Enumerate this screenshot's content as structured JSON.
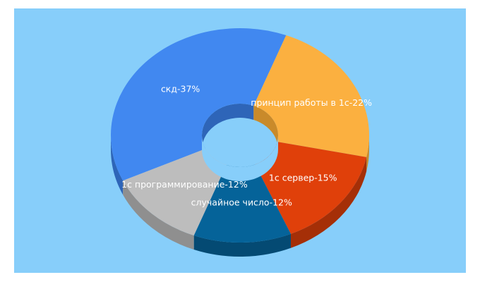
{
  "chart_data": {
    "type": "pie",
    "donut": true,
    "three_d": true,
    "background": "#87cefa",
    "slices": [
      {
        "label": "скд-37%",
        "value": 37,
        "color": "#4188f0",
        "side": "#2e65b8"
      },
      {
        "label": "принцип работы в 1с-22%",
        "value": 22,
        "color": "#fbb040",
        "side": "#c98a2a"
      },
      {
        "label": "1с сервер-15%",
        "value": 15,
        "color": "#e0400a",
        "side": "#a52f07"
      },
      {
        "label": "случайное число-12%",
        "value": 12,
        "color": "#056399",
        "side": "#044a73"
      },
      {
        "label": "1с программирование-12%",
        "value": 12,
        "color": "#bdbdbd",
        "side": "#8f8f8f"
      }
    ]
  }
}
